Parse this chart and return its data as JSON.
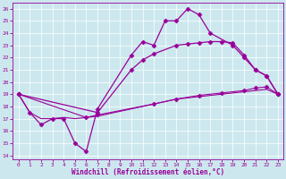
{
  "xlabel": "Windchill (Refroidissement éolien,°C)",
  "bg_color": "#cce8ee",
  "line_color": "#990099",
  "xlim": [
    -0.5,
    23.5
  ],
  "ylim": [
    13.7,
    26.5
  ],
  "xticks": [
    0,
    1,
    2,
    3,
    4,
    5,
    6,
    7,
    8,
    9,
    10,
    11,
    12,
    13,
    14,
    15,
    16,
    17,
    18,
    19,
    20,
    21,
    22,
    23
  ],
  "yticks": [
    14,
    15,
    16,
    17,
    18,
    19,
    20,
    21,
    22,
    23,
    24,
    25,
    26
  ],
  "series": [
    {
      "x": [
        0,
        1,
        2,
        3,
        4,
        5,
        6,
        7,
        10,
        11,
        12,
        13,
        14,
        15,
        16,
        17,
        19,
        20,
        21,
        22,
        23
      ],
      "y": [
        19.0,
        17.5,
        16.5,
        17.0,
        17.0,
        15.0,
        14.3,
        17.8,
        22.2,
        23.3,
        23.0,
        25.0,
        25.0,
        26.0,
        25.5,
        24.0,
        23.0,
        22.0,
        21.0,
        20.5,
        19.0
      ],
      "marker": "D",
      "markersize": 2.5,
      "lw": 0.9
    },
    {
      "x": [
        0,
        1,
        2,
        3,
        4,
        5,
        6,
        7,
        8,
        9,
        10,
        11,
        12,
        13,
        14,
        15,
        16,
        17,
        18,
        19,
        20,
        21,
        22,
        23
      ],
      "y": [
        19.0,
        17.5,
        17.0,
        17.0,
        17.1,
        17.0,
        17.1,
        17.2,
        17.4,
        17.6,
        17.8,
        18.0,
        18.2,
        18.4,
        18.6,
        18.7,
        18.8,
        18.9,
        19.0,
        19.1,
        19.2,
        19.3,
        19.4,
        19.0
      ],
      "marker": null,
      "markersize": 0,
      "lw": 0.8
    },
    {
      "x": [
        0,
        7,
        10,
        11,
        12,
        14,
        15,
        16,
        17,
        18,
        19,
        20,
        21,
        22,
        23
      ],
      "y": [
        19.0,
        17.5,
        21.0,
        21.8,
        22.3,
        23.0,
        23.1,
        23.2,
        23.3,
        23.3,
        23.2,
        22.2,
        21.0,
        20.5,
        19.0
      ],
      "marker": "D",
      "markersize": 2.5,
      "lw": 0.9
    },
    {
      "x": [
        0,
        6,
        7,
        12,
        14,
        16,
        18,
        20,
        21,
        22,
        23
      ],
      "y": [
        19.0,
        17.1,
        17.3,
        18.2,
        18.6,
        18.9,
        19.1,
        19.3,
        19.5,
        19.6,
        19.0
      ],
      "marker": "D",
      "markersize": 2.5,
      "lw": 0.8
    }
  ]
}
